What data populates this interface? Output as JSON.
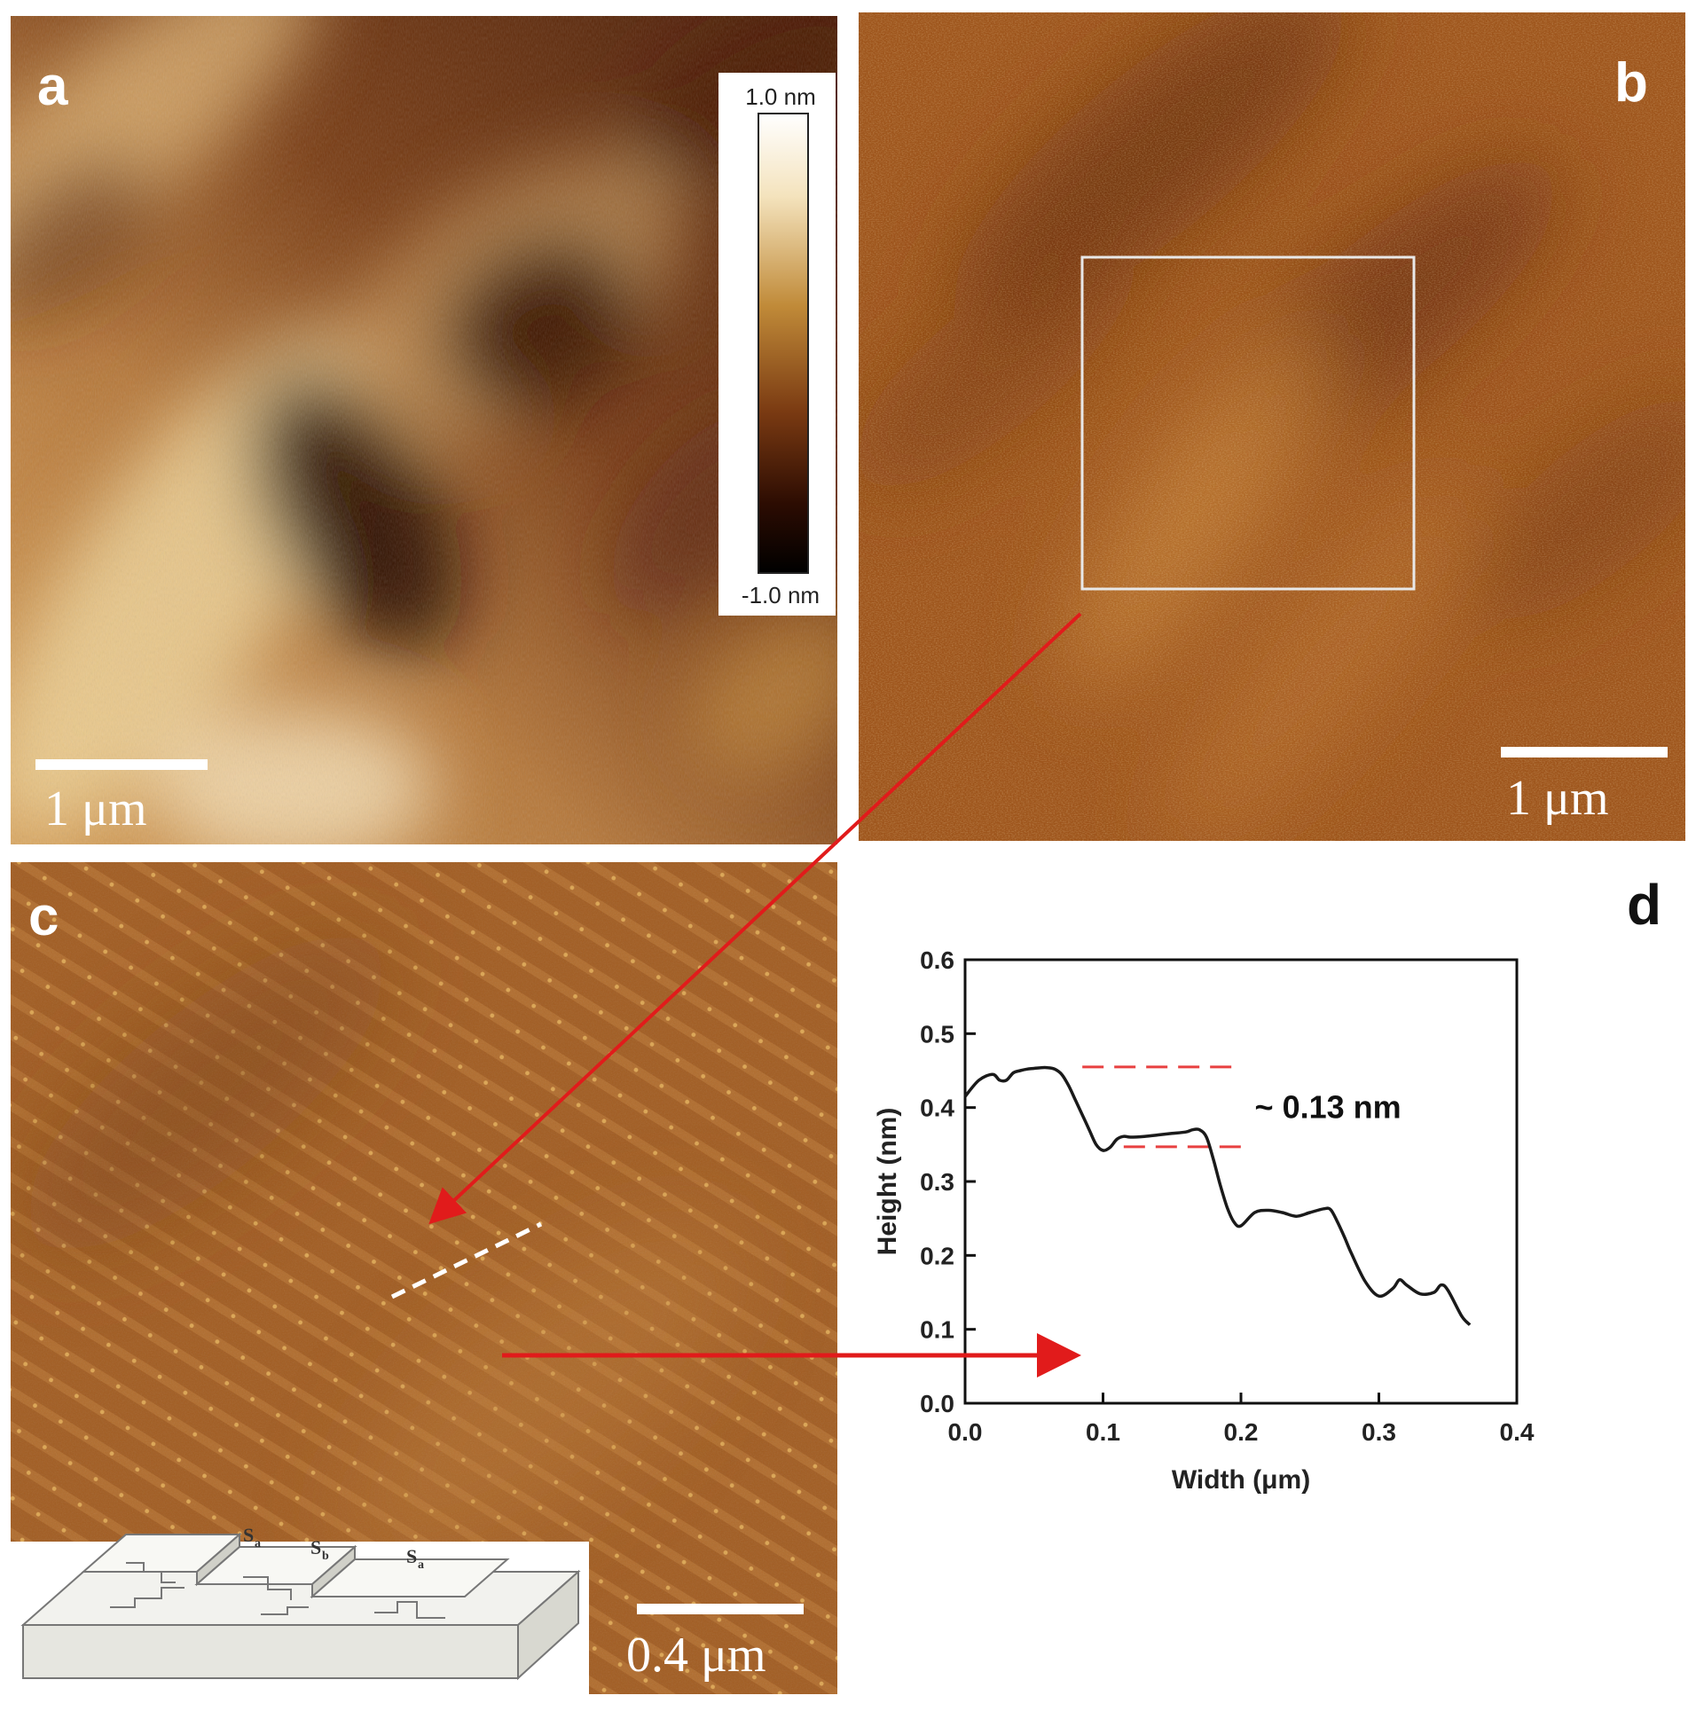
{
  "panel_a": {
    "letter": "a",
    "scale_bar": "1 μm",
    "colorbar": {
      "max_label": "1.0 nm",
      "min_label": "-1.0 nm"
    }
  },
  "panel_b": {
    "letter": "b",
    "scale_bar": "1 μm"
  },
  "panel_c": {
    "letter": "c",
    "scale_bar": "0.4 μm",
    "inset": {
      "labels": [
        "S",
        "S",
        "S"
      ],
      "subscripts": [
        "a",
        "b",
        "a"
      ]
    }
  },
  "panel_d": {
    "letter": "d"
  },
  "colors": {
    "afm_dark": "#2a0e00",
    "afm_mid": "#a8581c",
    "afm_light": "#f2dca8",
    "arrow": "#e11b1b",
    "profile_line": "#1a1a1a",
    "step_marker": "#e84040"
  },
  "chart_data": {
    "type": "line",
    "title": "",
    "xlabel": "Width (μm)",
    "ylabel": "Height (nm)",
    "xlim": [
      0.0,
      0.4
    ],
    "ylim": [
      0.0,
      0.6
    ],
    "xticks": [
      "0.0",
      "0.1",
      "0.2",
      "0.3",
      "0.4"
    ],
    "yticks": [
      "0.0",
      "0.1",
      "0.2",
      "0.3",
      "0.4",
      "0.5",
      "0.6"
    ],
    "grid": false,
    "legend": "none",
    "series": [
      {
        "x": [
          0.0,
          0.01,
          0.02,
          0.025,
          0.03,
          0.035,
          0.04,
          0.045,
          0.05,
          0.055,
          0.06,
          0.065,
          0.07,
          0.075,
          0.08,
          0.085,
          0.09,
          0.095,
          0.1,
          0.105,
          0.11,
          0.115,
          0.12,
          0.13,
          0.14,
          0.15,
          0.16,
          0.165,
          0.17,
          0.175,
          0.18,
          0.185,
          0.19,
          0.195,
          0.2,
          0.21,
          0.22,
          0.23,
          0.24,
          0.25,
          0.26,
          0.265,
          0.27,
          0.275,
          0.28,
          0.29,
          0.3,
          0.31,
          0.315,
          0.32,
          0.33,
          0.34,
          0.345,
          0.35,
          0.36,
          0.366
        ],
        "y": [
          0.415,
          0.437,
          0.445,
          0.437,
          0.437,
          0.447,
          0.45,
          0.452,
          0.453,
          0.454,
          0.454,
          0.452,
          0.445,
          0.43,
          0.41,
          0.39,
          0.37,
          0.35,
          0.342,
          0.346,
          0.357,
          0.361,
          0.36,
          0.361,
          0.363,
          0.365,
          0.367,
          0.37,
          0.37,
          0.36,
          0.33,
          0.295,
          0.265,
          0.245,
          0.24,
          0.258,
          0.261,
          0.258,
          0.253,
          0.258,
          0.263,
          0.262,
          0.245,
          0.225,
          0.203,
          0.165,
          0.145,
          0.155,
          0.167,
          0.16,
          0.148,
          0.15,
          0.16,
          0.153,
          0.118,
          0.106
        ]
      }
    ],
    "annotations": [
      {
        "text": "~ 0.13 nm",
        "x": 0.21,
        "y": 0.4
      },
      {
        "type": "hline-dashed",
        "y": 0.455,
        "x_range": [
          0.085,
          0.195
        ]
      },
      {
        "type": "hline-dashed",
        "y": 0.347,
        "x_range": [
          0.115,
          0.2
        ]
      }
    ]
  }
}
